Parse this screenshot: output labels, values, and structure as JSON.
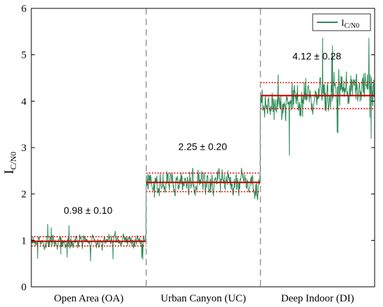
{
  "chart_data": {
    "type": "line",
    "title": "",
    "ylabel": "I",
    "ylabel_sub": "C/N0",
    "ylim": [
      0,
      6
    ],
    "yticks": [
      "0",
      "1",
      "2",
      "3",
      "4",
      "5",
      "6"
    ],
    "regions": [
      {
        "label": "Open Area (OA)",
        "mean": 0.98,
        "std": 0.1,
        "annotation": "0.98 ± 0.10"
      },
      {
        "label": "Urban Canyon (UC)",
        "mean": 2.25,
        "std": 0.2,
        "annotation": "2.25 ± 0.20"
      },
      {
        "label": "Deep Indoor (DI)",
        "mean": 4.12,
        "std": 0.28,
        "annotation": "4.12 ± 0.28"
      }
    ],
    "series": [
      {
        "name": "I",
        "name_sub": "C/N0",
        "color": "#2e8b57"
      }
    ],
    "mean_line_color": "#cc0000",
    "std_line_color": "#ff0000",
    "divider_color": "#999999",
    "legend_position": "top-right",
    "grid": false
  }
}
